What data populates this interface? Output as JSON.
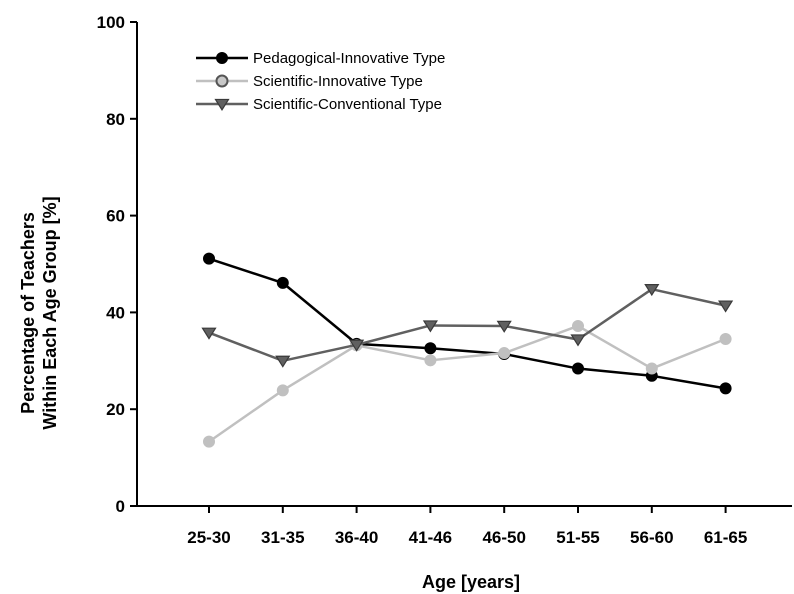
{
  "chart_data": {
    "type": "line",
    "xlabel": "Age [years]",
    "ylabel_lines": [
      "Percentage of Teachers",
      "Within Each Age Group [%]"
    ],
    "categories": [
      "25-30",
      "31-35",
      "36-40",
      "41-46",
      "46-50",
      "51-55",
      "56-60",
      "61-65"
    ],
    "ylim": [
      0,
      100
    ],
    "yticks": [
      0,
      20,
      40,
      60,
      80,
      100
    ],
    "grid": false,
    "legend_position": "top-left",
    "series": [
      {
        "name": "Pedagogical-Innovative Type",
        "color": "#000000",
        "marker": "circle-filled",
        "values": [
          51.1,
          46.1,
          33.5,
          32.6,
          31.4,
          28.4,
          26.9,
          24.3
        ]
      },
      {
        "name": "Scientific-Innovative Type",
        "color": "#c0c0c0",
        "marker": "circle-light",
        "values": [
          13.3,
          23.9,
          33.2,
          30.1,
          31.6,
          37.2,
          28.4,
          34.5
        ]
      },
      {
        "name": "Scientific-Conventional Type",
        "color": "#606060",
        "marker": "triangle-down",
        "values": [
          35.8,
          30.0,
          33.3,
          37.3,
          37.2,
          34.4,
          44.8,
          41.4
        ]
      }
    ]
  }
}
